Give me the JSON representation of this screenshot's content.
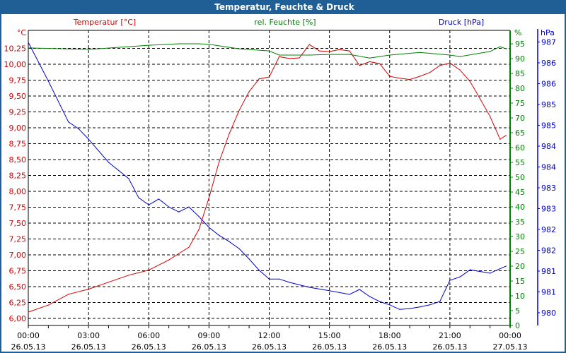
{
  "window": {
    "title": "Temperatur, Feuchte & Druck"
  },
  "chart_data": {
    "type": "line",
    "title": "Temperatur, Feuchte & Druck",
    "x_unit": "hours since 26.05.13 00:00",
    "xlim": [
      0,
      24
    ],
    "x_ticks": [
      {
        "time": "00:00",
        "date": "26.05.13"
      },
      {
        "time": "03:00",
        "date": "26.05.13"
      },
      {
        "time": "06:00",
        "date": "26.05.13"
      },
      {
        "time": "09:00",
        "date": "26.05.13"
      },
      {
        "time": "12:00",
        "date": "26.05.13"
      },
      {
        "time": "15:00",
        "date": "26.05.13"
      },
      {
        "time": "18:00",
        "date": "26.05.13"
      },
      {
        "time": "21:00",
        "date": "26.05.13"
      },
      {
        "time": "00:00",
        "date": "27.05.13"
      }
    ],
    "grid": true,
    "axes": {
      "temperature": {
        "label": "Temperatur [°C]",
        "unit": "°C",
        "ylim": [
          6.0,
          10.25
        ],
        "ticks": [
          "10,25",
          "10,00",
          "9,75",
          "9,50",
          "9,25",
          "9,00",
          "8,75",
          "8,50",
          "8,25",
          "8,00",
          "7,75",
          "7,50",
          "7,25",
          "7,00",
          "6,75",
          "6,50",
          "6,25",
          "6,00"
        ],
        "color": "#d40000"
      },
      "humidity": {
        "label": "rel. Feuchte [%]",
        "unit": "%",
        "ylim": [
          0,
          95
        ],
        "ticks": [
          "95",
          "90",
          "85",
          "80",
          "75",
          "70",
          "65",
          "60",
          "55",
          "50",
          "45",
          "40",
          "35",
          "30",
          "25",
          "20",
          "15",
          "10",
          "5",
          "0"
        ],
        "color": "#008000"
      },
      "pressure": {
        "label": "Druck [hPa]",
        "unit": "hPa",
        "ylim": [
          980.0,
          986.5
        ],
        "ticks": [
          "987",
          "986",
          "986",
          "985",
          "985",
          "984",
          "984",
          "983",
          "983",
          "982",
          "982",
          "981",
          "981",
          "980"
        ],
        "color": "#0000cc"
      }
    },
    "series": [
      {
        "name": "Temperatur",
        "axis": "temperature",
        "x": [
          0,
          1,
          2,
          3,
          4,
          5,
          6,
          7,
          8,
          8.5,
          9,
          9.5,
          10,
          10.5,
          11,
          11.5,
          12,
          12.5,
          13,
          13.5,
          14,
          14.5,
          15,
          15.5,
          16,
          16.5,
          17,
          17.5,
          18,
          18.5,
          19,
          19.5,
          20,
          20.5,
          21,
          21.5,
          22,
          22.5,
          23,
          23.5,
          23.8
        ],
        "y": [
          6.1,
          6.21,
          6.38,
          6.46,
          6.57,
          6.68,
          6.76,
          6.92,
          7.12,
          7.4,
          7.9,
          8.46,
          8.9,
          9.27,
          9.57,
          9.77,
          9.8,
          10.12,
          10.09,
          10.1,
          10.31,
          10.21,
          10.2,
          10.23,
          10.21,
          9.98,
          10.04,
          10.01,
          9.81,
          9.78,
          9.76,
          9.81,
          9.87,
          9.98,
          10.02,
          9.91,
          9.73,
          9.46,
          9.18,
          8.82,
          8.88
        ]
      },
      {
        "name": "rel. Feuchte",
        "axis": "humidity",
        "x": [
          0,
          3,
          6,
          7.5,
          8.5,
          9,
          10.5,
          12,
          12.5,
          14,
          15,
          16,
          17,
          18,
          19.5,
          21,
          21.5,
          23,
          23.5,
          23.8
        ],
        "y": [
          93.6,
          93.1,
          94.5,
          95.0,
          95.0,
          94.8,
          93.3,
          92.6,
          91.2,
          91.2,
          91.4,
          91.4,
          90.2,
          91.2,
          92.1,
          91.2,
          90.7,
          92.4,
          94.0,
          93.3
        ]
      },
      {
        "name": "Druck",
        "axis": "pressure",
        "x": [
          0,
          1,
          2,
          2.5,
          3,
          4,
          5,
          5.5,
          6,
          6.5,
          7,
          7.5,
          8,
          8.5,
          9,
          9.5,
          10,
          10.5,
          11,
          11.5,
          12,
          12.5,
          13,
          14,
          15,
          16,
          16.5,
          17,
          17.5,
          18,
          18.5,
          19,
          19.5,
          20,
          20.5,
          21,
          21.5,
          22,
          23,
          23.8
        ],
        "y": [
          986.49,
          985.56,
          984.58,
          984.42,
          984.17,
          983.61,
          983.22,
          982.76,
          982.59,
          982.73,
          982.54,
          982.42,
          982.54,
          982.31,
          982.05,
          981.86,
          981.71,
          981.54,
          981.29,
          981.02,
          980.81,
          980.81,
          980.73,
          980.61,
          980.53,
          980.44,
          980.56,
          980.39,
          980.27,
          980.19,
          980.08,
          980.1,
          980.14,
          980.19,
          980.27,
          980.78,
          980.86,
          981.03,
          980.95,
          981.12
        ]
      }
    ]
  }
}
